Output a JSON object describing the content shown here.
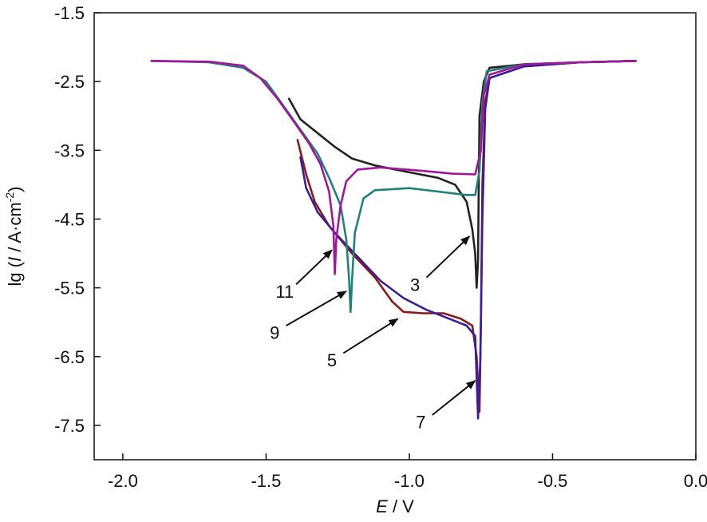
{
  "chart_data": {
    "type": "line",
    "xlabel_symbol": "E",
    "xlabel_unit": " / V",
    "ylabel_prefix": "lg (",
    "ylabel_symbol": "I",
    "ylabel_unit": " / A·cm",
    "ylabel_exp": "-2",
    "ylabel_suffix": ")",
    "xlim": [
      -2.1,
      0.0
    ],
    "ylim": [
      -8.0,
      -1.5
    ],
    "x_ticks": [
      -2.0,
      -1.5,
      -1.0,
      -0.5,
      0.0
    ],
    "x_tick_labels": [
      "-2.0",
      "-1.5",
      "-1.0",
      "-0.5",
      "0.0"
    ],
    "y_ticks": [
      -1.5,
      -2.5,
      -3.5,
      -4.5,
      -5.5,
      -6.5,
      -7.5
    ],
    "y_tick_labels": [
      "-1.5",
      "-2.5",
      "-3.5",
      "-4.5",
      "-5.5",
      "-6.5",
      "-7.5"
    ],
    "grid": false,
    "legend": "none",
    "series": [
      {
        "name": "3",
        "color": "#222222",
        "points": [
          [
            -1.42,
            -2.75
          ],
          [
            -1.38,
            -3.05
          ],
          [
            -1.32,
            -3.25
          ],
          [
            -1.26,
            -3.45
          ],
          [
            -1.2,
            -3.62
          ],
          [
            -1.12,
            -3.72
          ],
          [
            -1.0,
            -3.82
          ],
          [
            -0.9,
            -3.9
          ],
          [
            -0.84,
            -4.0
          ],
          [
            -0.8,
            -4.25
          ],
          [
            -0.78,
            -4.65
          ],
          [
            -0.77,
            -5.0
          ],
          [
            -0.765,
            -5.5
          ],
          [
            -0.76,
            -5.1
          ],
          [
            -0.758,
            -4.2
          ],
          [
            -0.755,
            -3.0
          ],
          [
            -0.74,
            -2.5
          ],
          [
            -0.72,
            -2.3
          ],
          [
            -0.6,
            -2.25
          ],
          [
            -0.4,
            -2.22
          ],
          [
            -0.21,
            -2.2
          ]
        ]
      },
      {
        "name": "5",
        "color": "#8B1A1A",
        "points": [
          [
            -1.39,
            -3.35
          ],
          [
            -1.36,
            -3.85
          ],
          [
            -1.33,
            -4.25
          ],
          [
            -1.28,
            -4.6
          ],
          [
            -1.2,
            -5.0
          ],
          [
            -1.12,
            -5.35
          ],
          [
            -1.06,
            -5.7
          ],
          [
            -1.02,
            -5.85
          ],
          [
            -0.95,
            -5.87
          ],
          [
            -0.88,
            -5.87
          ],
          [
            -0.82,
            -5.95
          ],
          [
            -0.78,
            -6.05
          ],
          [
            -0.765,
            -6.5
          ],
          [
            -0.755,
            -7.3
          ],
          [
            -0.75,
            -6.0
          ],
          [
            -0.745,
            -4.0
          ],
          [
            -0.735,
            -2.8
          ],
          [
            -0.72,
            -2.45
          ],
          [
            -0.6,
            -2.28
          ],
          [
            -0.4,
            -2.22
          ],
          [
            -0.21,
            -2.2
          ]
        ]
      },
      {
        "name": "7",
        "color": "#3B1E9A",
        "points": [
          [
            -1.38,
            -3.6
          ],
          [
            -1.36,
            -4.05
          ],
          [
            -1.32,
            -4.4
          ],
          [
            -1.26,
            -4.7
          ],
          [
            -1.18,
            -5.05
          ],
          [
            -1.1,
            -5.4
          ],
          [
            -1.02,
            -5.65
          ],
          [
            -0.94,
            -5.82
          ],
          [
            -0.86,
            -5.95
          ],
          [
            -0.8,
            -6.05
          ],
          [
            -0.77,
            -6.2
          ],
          [
            -0.76,
            -7.4
          ],
          [
            -0.752,
            -6.5
          ],
          [
            -0.745,
            -4.5
          ],
          [
            -0.735,
            -2.9
          ],
          [
            -0.72,
            -2.45
          ],
          [
            -0.6,
            -2.28
          ],
          [
            -0.4,
            -2.22
          ],
          [
            -0.21,
            -2.2
          ]
        ]
      },
      {
        "name": "9",
        "color": "#1E8276",
        "points": [
          [
            -1.9,
            -2.2
          ],
          [
            -1.7,
            -2.22
          ],
          [
            -1.58,
            -2.3
          ],
          [
            -1.5,
            -2.5
          ],
          [
            -1.44,
            -2.85
          ],
          [
            -1.38,
            -3.2
          ],
          [
            -1.32,
            -3.55
          ],
          [
            -1.28,
            -3.9
          ],
          [
            -1.24,
            -4.3
          ],
          [
            -1.22,
            -4.8
          ],
          [
            -1.21,
            -5.4
          ],
          [
            -1.205,
            -5.85
          ],
          [
            -1.2,
            -5.4
          ],
          [
            -1.19,
            -4.7
          ],
          [
            -1.16,
            -4.2
          ],
          [
            -1.12,
            -4.08
          ],
          [
            -1.0,
            -4.05
          ],
          [
            -0.9,
            -4.1
          ],
          [
            -0.8,
            -4.15
          ],
          [
            -0.77,
            -4.15
          ],
          [
            -0.755,
            -3.8
          ],
          [
            -0.745,
            -2.8
          ],
          [
            -0.73,
            -2.35
          ],
          [
            -0.6,
            -2.25
          ],
          [
            -0.4,
            -2.22
          ],
          [
            -0.21,
            -2.2
          ]
        ]
      },
      {
        "name": "11",
        "color": "#A3169C",
        "points": [
          [
            -1.9,
            -2.2
          ],
          [
            -1.7,
            -2.21
          ],
          [
            -1.58,
            -2.27
          ],
          [
            -1.52,
            -2.45
          ],
          [
            -1.46,
            -2.75
          ],
          [
            -1.4,
            -3.1
          ],
          [
            -1.35,
            -3.4
          ],
          [
            -1.31,
            -3.7
          ],
          [
            -1.28,
            -4.1
          ],
          [
            -1.265,
            -4.6
          ],
          [
            -1.26,
            -5.3
          ],
          [
            -1.255,
            -4.8
          ],
          [
            -1.24,
            -4.3
          ],
          [
            -1.22,
            -3.95
          ],
          [
            -1.18,
            -3.78
          ],
          [
            -1.1,
            -3.75
          ],
          [
            -0.95,
            -3.8
          ],
          [
            -0.85,
            -3.84
          ],
          [
            -0.77,
            -3.85
          ],
          [
            -0.75,
            -3.5
          ],
          [
            -0.74,
            -2.7
          ],
          [
            -0.72,
            -2.4
          ],
          [
            -0.6,
            -2.25
          ],
          [
            -0.4,
            -2.22
          ],
          [
            -0.21,
            -2.2
          ]
        ]
      }
    ],
    "annotations": [
      {
        "label": "11",
        "label_xy": [
          -1.435,
          -5.55
        ],
        "arrow_from": [
          -1.395,
          -5.45
        ],
        "arrow_to": [
          -1.27,
          -4.95
        ]
      },
      {
        "label": "9",
        "label_xy": [
          -1.47,
          -6.15
        ],
        "arrow_from": [
          -1.43,
          -6.05
        ],
        "arrow_to": [
          -1.22,
          -5.55
        ]
      },
      {
        "label": "5",
        "label_xy": [
          -1.27,
          -6.55
        ],
        "arrow_from": [
          -1.23,
          -6.45
        ],
        "arrow_to": [
          -1.04,
          -5.95
        ]
      },
      {
        "label": "3",
        "label_xy": [
          -0.98,
          -5.45
        ],
        "arrow_from": [
          -0.94,
          -5.35
        ],
        "arrow_to": [
          -0.79,
          -4.75
        ]
      },
      {
        "label": "7",
        "label_xy": [
          -0.96,
          -7.45
        ],
        "arrow_from": [
          -0.92,
          -7.35
        ],
        "arrow_to": [
          -0.77,
          -6.85
        ]
      }
    ]
  }
}
